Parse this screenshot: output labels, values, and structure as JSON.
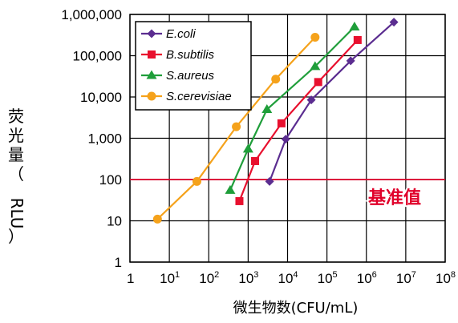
{
  "chart_data": {
    "type": "line",
    "xlabel": "微生物数(CFU/mL)",
    "ylabel": [
      "荧",
      "光",
      "量",
      "（",
      "RLU",
      "）"
    ],
    "x_scale": "log",
    "y_scale": "log",
    "xlim": [
      1,
      100000000
    ],
    "ylim": [
      1,
      1000000
    ],
    "grid": true,
    "legend_position": "top-left",
    "x_ticks": [
      {
        "base": "1",
        "exp": ""
      },
      {
        "base": "10",
        "exp": "1"
      },
      {
        "base": "10",
        "exp": "2"
      },
      {
        "base": "10",
        "exp": "3"
      },
      {
        "base": "10",
        "exp": "4"
      },
      {
        "base": "10",
        "exp": "5"
      },
      {
        "base": "10",
        "exp": "6"
      },
      {
        "base": "10",
        "exp": "7"
      },
      {
        "base": "10",
        "exp": "8"
      }
    ],
    "y_ticks": [
      "1",
      "10",
      "100",
      "1,000",
      "10,000",
      "100,000",
      "1,000,000"
    ],
    "reference_line": {
      "value": 100,
      "label": "基准值",
      "color": "#e0002a"
    },
    "series": [
      {
        "name": "E.coli",
        "color": "#5b2d90",
        "marker": "diamond",
        "points": [
          [
            3500,
            90
          ],
          [
            9000,
            950
          ],
          [
            40000,
            8500
          ],
          [
            400000,
            75000
          ],
          [
            5000000,
            650000
          ]
        ]
      },
      {
        "name": "B.subtilis",
        "color": "#e8102e",
        "marker": "square",
        "points": [
          [
            600,
            30
          ],
          [
            1500,
            280
          ],
          [
            7000,
            2300
          ],
          [
            60000,
            23000
          ],
          [
            600000,
            240000
          ]
        ]
      },
      {
        "name": "S.aureus",
        "color": "#1f9e3a",
        "marker": "triangle",
        "points": [
          [
            350,
            55
          ],
          [
            1000,
            550
          ],
          [
            3000,
            5000
          ],
          [
            50000,
            55000
          ],
          [
            500000,
            500000
          ]
        ]
      },
      {
        "name": "S.cerevisiae",
        "color": "#f5a21b",
        "marker": "circle",
        "points": [
          [
            5,
            11
          ],
          [
            50,
            90
          ],
          [
            500,
            1900
          ],
          [
            5000,
            27000
          ],
          [
            50000,
            280000
          ]
        ]
      }
    ]
  }
}
